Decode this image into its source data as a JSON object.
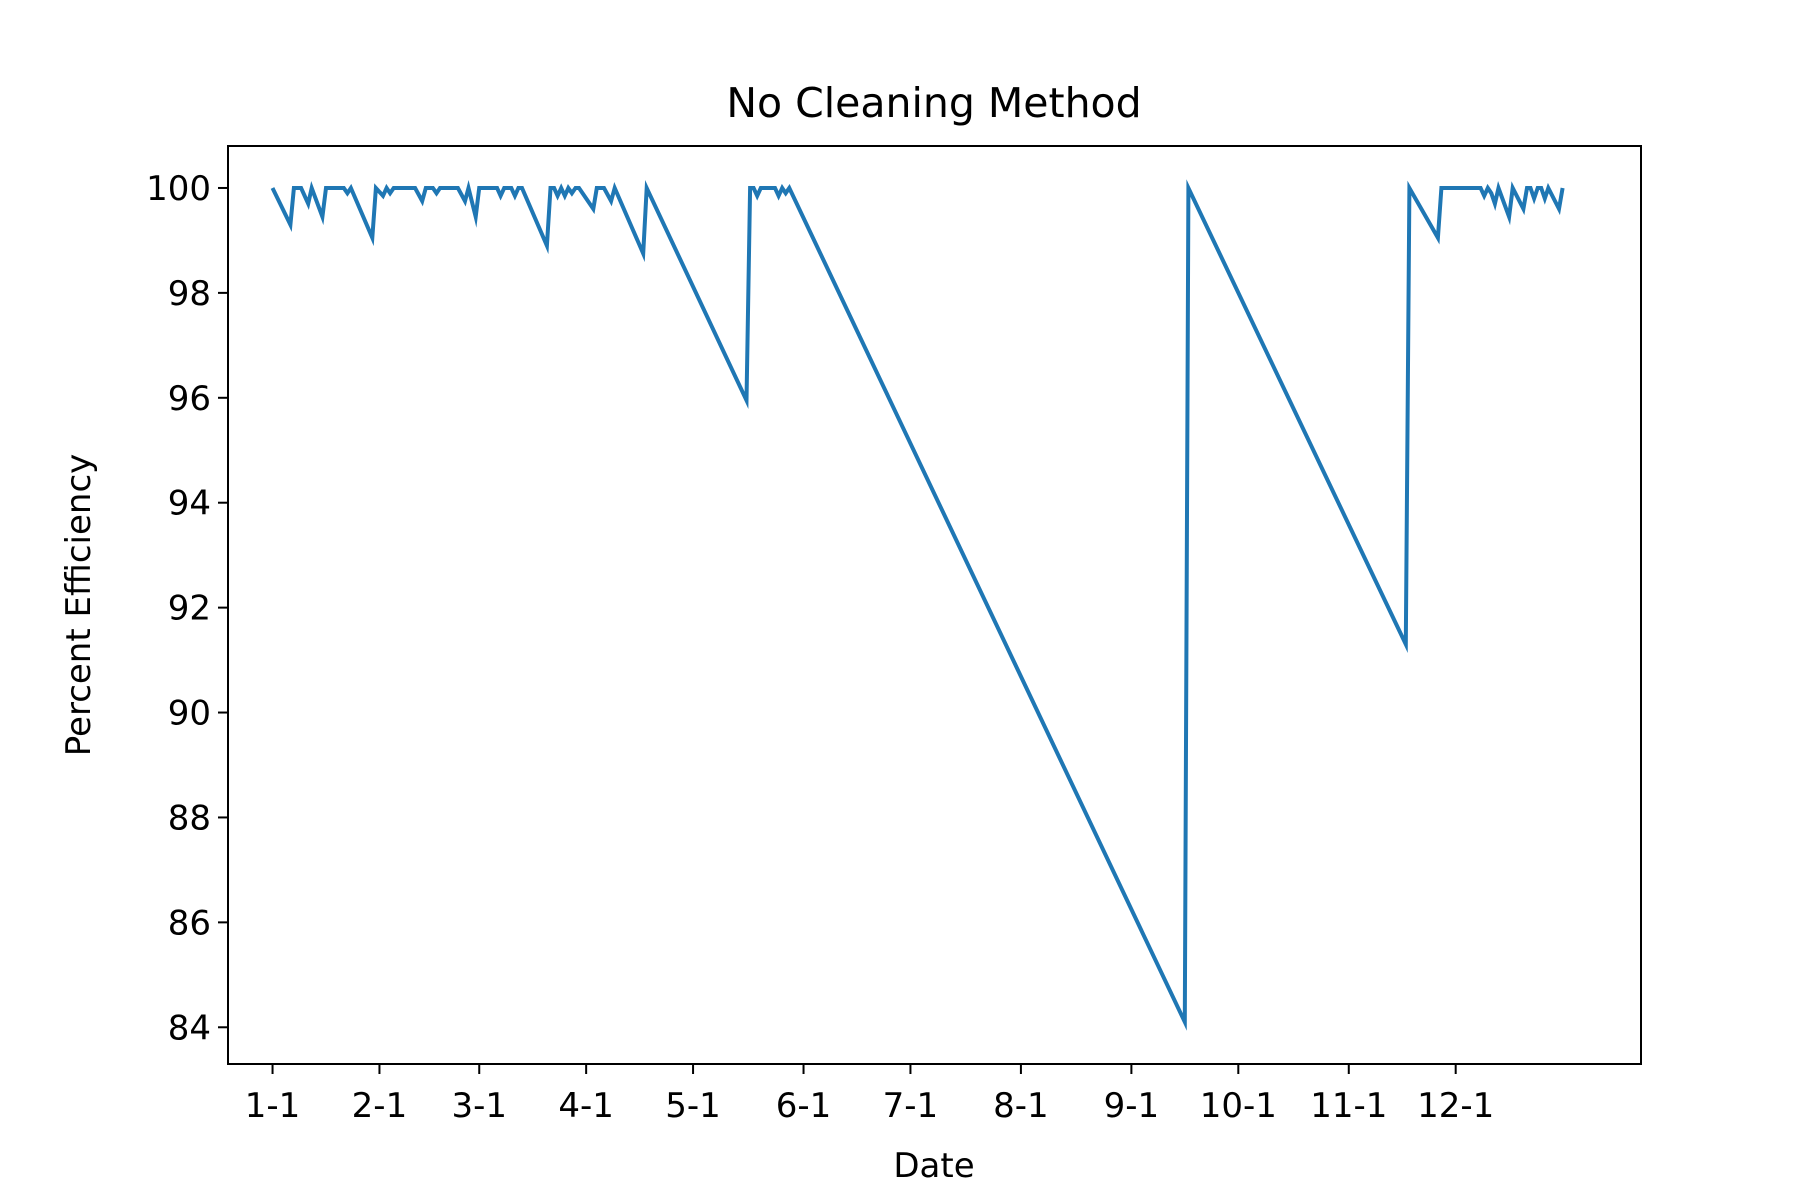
{
  "chart_data": {
    "type": "line",
    "title": "No Cleaning Method",
    "xlabel": "Date",
    "ylabel": "Percent Efficiency",
    "ylim": [
      83.3,
      100.8
    ],
    "yticks": [
      84,
      86,
      88,
      90,
      92,
      94,
      96,
      98,
      100
    ],
    "xlim_day": [
      -12.5,
      384
    ],
    "xticks": [
      {
        "label": "1-1",
        "day": 0
      },
      {
        "label": "2-1",
        "day": 30
      },
      {
        "label": "3-1",
        "day": 58
      },
      {
        "label": "4-1",
        "day": 88
      },
      {
        "label": "5-1",
        "day": 118
      },
      {
        "label": "6-1",
        "day": 149
      },
      {
        "label": "7-1",
        "day": 179
      },
      {
        "label": "8-1",
        "day": 210
      },
      {
        "label": "9-1",
        "day": 241
      },
      {
        "label": "10-1",
        "day": 271
      },
      {
        "label": "11-1",
        "day": 302
      },
      {
        "label": "12-1",
        "day": 332
      }
    ],
    "grid": false,
    "legend": "none",
    "line_color": "#1f77b4",
    "series": [
      {
        "points": [
          [
            0,
            100.0
          ],
          [
            5,
            99.3
          ],
          [
            6,
            100.0
          ],
          [
            8,
            100.0
          ],
          [
            10,
            99.7
          ],
          [
            11,
            100.0
          ],
          [
            14,
            99.45
          ],
          [
            15,
            100.0
          ],
          [
            20,
            100.0
          ],
          [
            21,
            99.9
          ],
          [
            22,
            100.0
          ],
          [
            28,
            99.05
          ],
          [
            29,
            100.0
          ],
          [
            31,
            99.85
          ],
          [
            32,
            100.0
          ],
          [
            33,
            99.9
          ],
          [
            34,
            100.0
          ],
          [
            40,
            100.0
          ],
          [
            42,
            99.75
          ],
          [
            43,
            100.0
          ],
          [
            45,
            100.0
          ],
          [
            46,
            99.9
          ],
          [
            47,
            100.0
          ],
          [
            52,
            100.0
          ],
          [
            54,
            99.75
          ],
          [
            55,
            100.0
          ],
          [
            57,
            99.45
          ],
          [
            58,
            100.0
          ],
          [
            63,
            100.0
          ],
          [
            64,
            99.85
          ],
          [
            65,
            100.0
          ],
          [
            67,
            100.0
          ],
          [
            68,
            99.85
          ],
          [
            69,
            100.0
          ],
          [
            70,
            100.0
          ],
          [
            77,
            98.9
          ],
          [
            78,
            100.0
          ],
          [
            79,
            100.0
          ],
          [
            80,
            99.85
          ],
          [
            81,
            100.0
          ],
          [
            82,
            99.85
          ],
          [
            83,
            100.0
          ],
          [
            84,
            99.9
          ],
          [
            85,
            100.0
          ],
          [
            86,
            100.0
          ],
          [
            90,
            99.6
          ],
          [
            91,
            100.0
          ],
          [
            93,
            100.0
          ],
          [
            95,
            99.75
          ],
          [
            96,
            100.0
          ],
          [
            104,
            98.75
          ],
          [
            105,
            100.0
          ],
          [
            133,
            95.95
          ],
          [
            134,
            100.0
          ],
          [
            135,
            100.0
          ],
          [
            136,
            99.85
          ],
          [
            137,
            100.0
          ],
          [
            141,
            100.0
          ],
          [
            142,
            99.85
          ],
          [
            143,
            100.0
          ],
          [
            144,
            99.9
          ],
          [
            145,
            100.0
          ],
          [
            256,
            84.1
          ],
          [
            257,
            100.0
          ],
          [
            318,
            91.3
          ],
          [
            319,
            100.0
          ],
          [
            327,
            99.05
          ],
          [
            328,
            100.0
          ],
          [
            339,
            100.0
          ],
          [
            340,
            99.85
          ],
          [
            341,
            100.0
          ],
          [
            342,
            99.9
          ],
          [
            343,
            99.7
          ],
          [
            344,
            100.0
          ],
          [
            347,
            99.45
          ],
          [
            348,
            100.0
          ],
          [
            351,
            99.6
          ],
          [
            352,
            100.0
          ],
          [
            353,
            100.0
          ],
          [
            354,
            99.8
          ],
          [
            355,
            100.0
          ],
          [
            356,
            100.0
          ],
          [
            357,
            99.8
          ],
          [
            358,
            100.0
          ],
          [
            361,
            99.6
          ],
          [
            362,
            100.0
          ]
        ]
      }
    ]
  }
}
